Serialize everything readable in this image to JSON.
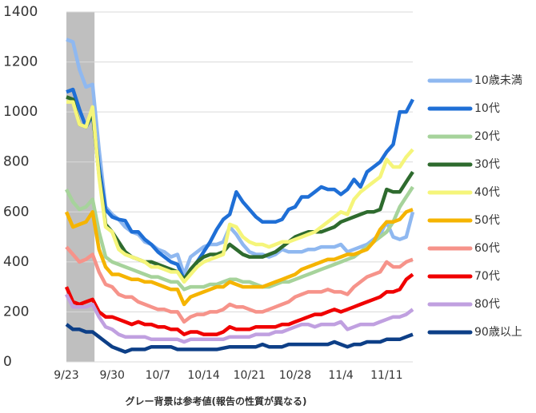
{
  "chart_data": {
    "type": "line",
    "caption": "グレー背景は参考値(報告の性質が異なる)",
    "categories": [
      "9/23",
      null,
      null,
      null,
      null,
      null,
      null,
      "9/30",
      null,
      null,
      null,
      null,
      null,
      null,
      "10/7",
      null,
      null,
      null,
      null,
      null,
      null,
      "10/14",
      null,
      null,
      null,
      null,
      null,
      null,
      "10/21",
      null,
      null,
      null,
      null,
      null,
      null,
      "10/28",
      null,
      null,
      null,
      null,
      null,
      null,
      "11/4",
      null,
      null,
      null,
      null,
      null,
      null,
      "11/11",
      null,
      null,
      null,
      null
    ],
    "ylim": [
      0,
      1400
    ],
    "yticks": [
      0,
      200,
      400,
      600,
      800,
      1000,
      1200,
      1400
    ],
    "grid": true,
    "series": [
      {
        "name": "10歳未満",
        "color": "#8fb8f0",
        "values": [
          1290,
          1280,
          1170,
          1100,
          1110,
          850,
          620,
          590,
          570,
          540,
          520,
          510,
          480,
          470,
          450,
          440,
          420,
          430,
          350,
          420,
          440,
          460,
          470,
          470,
          480,
          540,
          510,
          470,
          440,
          430,
          430,
          420,
          430,
          450,
          440,
          440,
          440,
          450,
          450,
          460,
          460,
          460,
          470,
          440,
          450,
          460,
          470,
          490,
          510,
          560,
          500,
          490,
          500,
          600
        ]
      },
      {
        "name": "10代",
        "color": "#1f6fd6",
        "values": [
          1080,
          1090,
          1010,
          940,
          990,
          780,
          610,
          580,
          570,
          565,
          520,
          520,
          490,
          470,
          440,
          420,
          400,
          390,
          330,
          360,
          400,
          440,
          480,
          530,
          570,
          590,
          680,
          640,
          610,
          580,
          560,
          560,
          560,
          570,
          610,
          620,
          660,
          660,
          680,
          700,
          690,
          690,
          670,
          690,
          730,
          700,
          760,
          780,
          800,
          840,
          870,
          1000,
          1000,
          1050
        ]
      },
      {
        "name": "20代",
        "color": "#a6d39b",
        "values": [
          690,
          640,
          610,
          620,
          650,
          520,
          420,
          400,
          390,
          380,
          370,
          360,
          350,
          340,
          340,
          330,
          320,
          320,
          290,
          300,
          300,
          300,
          310,
          310,
          320,
          330,
          330,
          320,
          320,
          310,
          300,
          300,
          310,
          320,
          320,
          330,
          340,
          350,
          360,
          370,
          380,
          390,
          400,
          410,
          420,
          440,
          460,
          480,
          500,
          520,
          560,
          620,
          660,
          700
        ]
      },
      {
        "name": "30代",
        "color": "#2e6b2e",
        "values": [
          1060,
          1050,
          950,
          940,
          1000,
          750,
          550,
          520,
          480,
          440,
          420,
          410,
          400,
          400,
          390,
          380,
          370,
          360,
          330,
          370,
          400,
          420,
          430,
          430,
          440,
          470,
          450,
          430,
          420,
          420,
          420,
          430,
          440,
          460,
          480,
          500,
          510,
          520,
          520,
          520,
          530,
          540,
          560,
          570,
          580,
          590,
          600,
          600,
          610,
          690,
          680,
          680,
          720,
          760
        ]
      },
      {
        "name": "40代",
        "color": "#f5f57a",
        "values": [
          1040,
          1040,
          950,
          940,
          1020,
          740,
          540,
          520,
          450,
          430,
          420,
          410,
          400,
          380,
          380,
          370,
          360,
          360,
          320,
          350,
          380,
          400,
          410,
          420,
          430,
          550,
          540,
          500,
          480,
          470,
          470,
          460,
          470,
          480,
          480,
          490,
          500,
          510,
          520,
          540,
          560,
          580,
          600,
          590,
          650,
          680,
          700,
          720,
          740,
          810,
          780,
          780,
          820,
          850
        ]
      },
      {
        "name": "50代",
        "color": "#f5b400",
        "values": [
          600,
          540,
          550,
          560,
          600,
          450,
          380,
          350,
          350,
          340,
          330,
          330,
          320,
          320,
          310,
          300,
          290,
          290,
          230,
          260,
          270,
          280,
          290,
          300,
          300,
          320,
          310,
          300,
          300,
          300,
          300,
          310,
          320,
          330,
          340,
          350,
          370,
          380,
          390,
          400,
          410,
          410,
          420,
          430,
          430,
          440,
          450,
          480,
          530,
          560,
          560,
          570,
          600,
          610
        ]
      },
      {
        "name": "60代",
        "color": "#f6938a",
        "values": [
          460,
          430,
          400,
          410,
          430,
          360,
          310,
          300,
          270,
          260,
          260,
          240,
          230,
          220,
          210,
          210,
          200,
          200,
          160,
          180,
          190,
          190,
          200,
          200,
          210,
          230,
          220,
          220,
          210,
          200,
          200,
          210,
          220,
          230,
          240,
          260,
          270,
          280,
          280,
          280,
          290,
          280,
          280,
          270,
          300,
          320,
          340,
          350,
          360,
          400,
          380,
          380,
          400,
          410
        ]
      },
      {
        "name": "70代",
        "color": "#f00000",
        "values": [
          300,
          240,
          230,
          240,
          250,
          200,
          180,
          180,
          170,
          160,
          150,
          160,
          150,
          150,
          140,
          140,
          130,
          130,
          110,
          120,
          120,
          110,
          110,
          110,
          120,
          140,
          130,
          130,
          130,
          140,
          140,
          140,
          140,
          150,
          150,
          160,
          170,
          180,
          190,
          190,
          200,
          210,
          200,
          210,
          220,
          230,
          240,
          250,
          260,
          280,
          280,
          290,
          330,
          350
        ]
      },
      {
        "name": "80代",
        "color": "#c0a0e0",
        "values": [
          270,
          220,
          220,
          220,
          230,
          180,
          140,
          130,
          110,
          100,
          100,
          100,
          100,
          90,
          90,
          90,
          90,
          90,
          80,
          90,
          90,
          90,
          90,
          90,
          90,
          100,
          100,
          100,
          100,
          110,
          110,
          110,
          120,
          120,
          130,
          140,
          150,
          150,
          140,
          150,
          150,
          150,
          160,
          130,
          140,
          150,
          150,
          150,
          160,
          170,
          180,
          180,
          190,
          210
        ]
      },
      {
        "name": "90歳以上",
        "color": "#0d3f87",
        "values": [
          150,
          130,
          130,
          120,
          120,
          100,
          80,
          60,
          50,
          40,
          50,
          50,
          50,
          60,
          60,
          60,
          60,
          50,
          50,
          50,
          50,
          50,
          50,
          50,
          55,
          60,
          60,
          60,
          60,
          60,
          70,
          60,
          60,
          60,
          70,
          70,
          70,
          70,
          70,
          70,
          70,
          80,
          70,
          60,
          70,
          70,
          80,
          80,
          80,
          90,
          90,
          90,
          100,
          110
        ]
      }
    ]
  }
}
